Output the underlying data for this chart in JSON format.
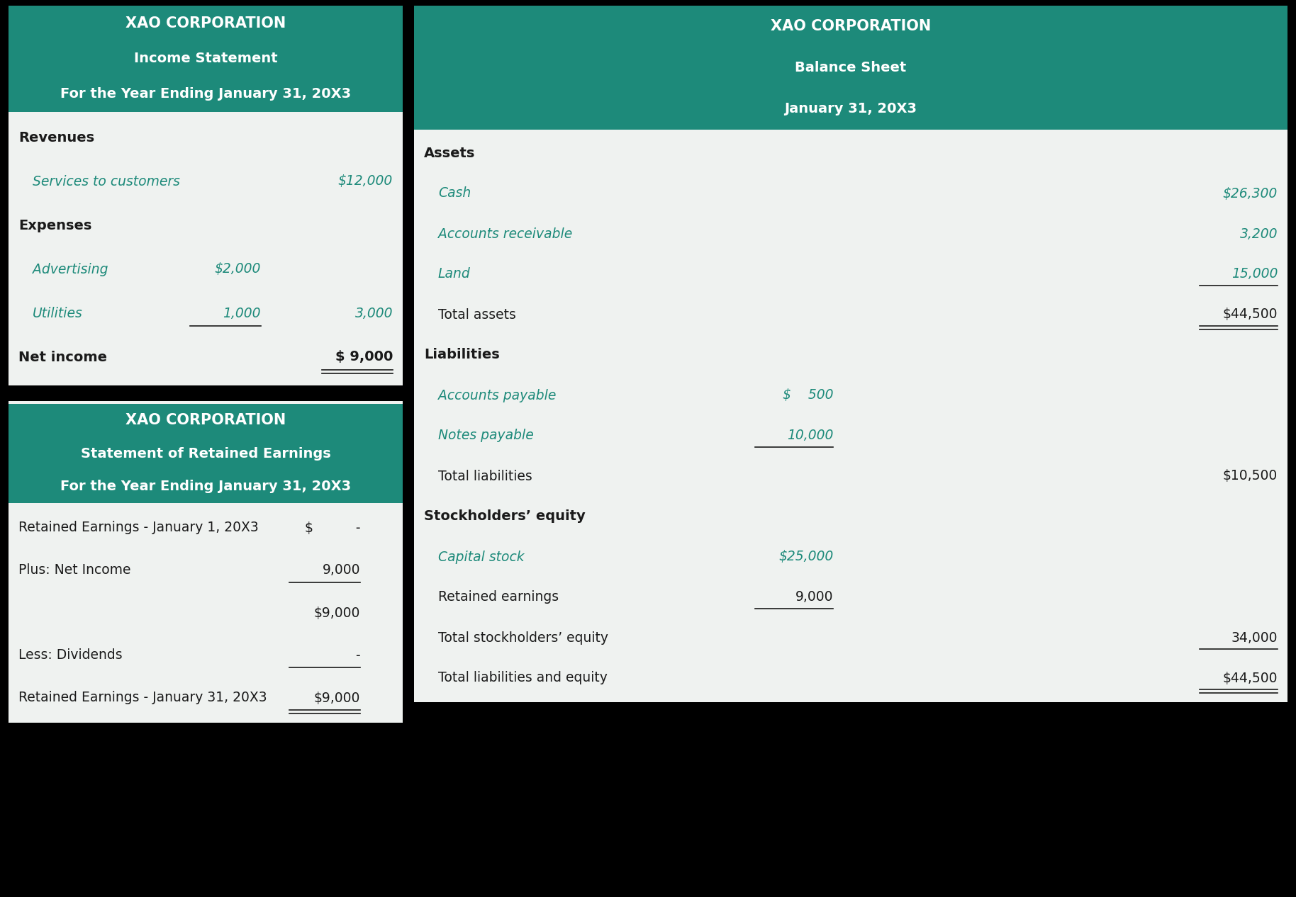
{
  "teal": "#1d8a7a",
  "bg": "#eff2f0",
  "white": "#ffffff",
  "dark": "#1a1a1a",
  "teal_text": "#1d8a7a",
  "fig_w": 18.28,
  "fig_h": 12.66,
  "dpi": 100,
  "income_statement": {
    "title_lines": [
      "XAO CORPORATION",
      "Income Statement",
      "For the Year Ending January 31, 20X3"
    ],
    "rows": [
      {
        "label": "Revenues",
        "c1": "",
        "c2": "",
        "bold": true,
        "teal_text": false
      },
      {
        "label": "Services to customers",
        "c1": "",
        "c2": "$12,000",
        "bold": false,
        "teal_text": true,
        "italic": true
      },
      {
        "label": "Expenses",
        "c1": "",
        "c2": "",
        "bold": true,
        "teal_text": false
      },
      {
        "label": "Advertising",
        "c1": "$2,000",
        "c2": "",
        "bold": false,
        "teal_text": true,
        "italic": true
      },
      {
        "label": "Utilities",
        "c1": "1,000",
        "c2": "3,000",
        "bold": false,
        "teal_text": true,
        "italic": true,
        "ul_c1": true
      },
      {
        "label": "Net income",
        "c1": "",
        "c2": "$ 9,000",
        "bold": true,
        "teal_text": false,
        "ul_c2": true,
        "dul_c2": true
      }
    ]
  },
  "retained_earnings": {
    "title_lines": [
      "XAO CORPORATION",
      "Statement of Retained Earnings",
      "For the Year Ending January 31, 20X3"
    ],
    "rows": [
      {
        "label": "Retained Earnings - January 1, 20X3",
        "c1": "$          -",
        "c2": "",
        "bold": false,
        "teal_text": false
      },
      {
        "label": "Plus: Net Income",
        "c1": "9,000",
        "c2": "",
        "bold": false,
        "teal_text": false,
        "ul_c1": true
      },
      {
        "label": "",
        "c1": "$9,000",
        "c2": "",
        "bold": false,
        "teal_text": false
      },
      {
        "label": "Less: Dividends",
        "c1": "-",
        "c2": "",
        "bold": false,
        "teal_text": false,
        "ul_c1": true
      },
      {
        "label": "Retained Earnings - January 31, 20X3",
        "c1": "$9,000",
        "c2": "",
        "bold": false,
        "teal_text": false,
        "ul_c1": true,
        "dul_c1": true
      }
    ]
  },
  "balance_sheet": {
    "title_lines": [
      "XAO CORPORATION",
      "Balance Sheet",
      "January 31, 20X3"
    ],
    "rows": [
      {
        "label": "Assets",
        "c1": "",
        "c2": "",
        "bold": true,
        "teal_text": false
      },
      {
        "label": "Cash",
        "c1": "",
        "c2": "$26,300",
        "bold": false,
        "teal_text": true,
        "italic": true
      },
      {
        "label": "Accounts receivable",
        "c1": "",
        "c2": "3,200",
        "bold": false,
        "teal_text": true,
        "italic": true
      },
      {
        "label": "Land",
        "c1": "",
        "c2": "15,000",
        "bold": false,
        "teal_text": true,
        "italic": true,
        "ul_c2": true
      },
      {
        "label": "Total assets",
        "c1": "",
        "c2": "$44,500",
        "bold": false,
        "teal_text": false,
        "ul_c2": true,
        "dul_c2": true
      },
      {
        "label": "Liabilities",
        "c1": "",
        "c2": "",
        "bold": true,
        "teal_text": false
      },
      {
        "label": "Accounts payable",
        "c1": "$    500",
        "c2": "",
        "bold": false,
        "teal_text": true,
        "italic": true
      },
      {
        "label": "Notes payable",
        "c1": "10,000",
        "c2": "",
        "bold": false,
        "teal_text": true,
        "italic": true,
        "ul_c1": true
      },
      {
        "label": "Total liabilities",
        "c1": "",
        "c2": "$10,500",
        "bold": false,
        "teal_text": false
      },
      {
        "label": "Stockholders’ equity",
        "c1": "",
        "c2": "",
        "bold": true,
        "teal_text": false
      },
      {
        "label": "Capital stock",
        "c1": "$25,000",
        "c2": "",
        "bold": false,
        "teal_text": true,
        "italic": true
      },
      {
        "label": "Retained earnings",
        "c1": "9,000",
        "c2": "",
        "bold": false,
        "teal_text": false,
        "ul_c1": true
      },
      {
        "label": "Total stockholders’ equity",
        "c1": "",
        "c2": "34,000",
        "bold": false,
        "teal_text": false,
        "ul_c2": true
      },
      {
        "label": "Total liabilities and equity",
        "c1": "",
        "c2": "$44,500",
        "bold": false,
        "teal_text": false,
        "ul_c2": true,
        "dul_c2": true
      }
    ]
  }
}
